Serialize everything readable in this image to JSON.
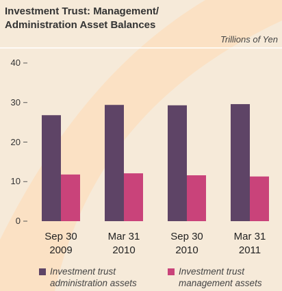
{
  "chart_data": {
    "type": "bar",
    "title": "Investment Trust: Management/\nAdministration Asset Balances",
    "unit_label": "Trillions of Yen",
    "categories": [
      "Sep 30\n2009",
      "Mar 31\n2010",
      "Sep 30\n2010",
      "Mar 31\n2011"
    ],
    "series": [
      {
        "name": "Investment trust\nadministration assets",
        "color": "#5e4466",
        "values": [
          26.8,
          29.4,
          29.3,
          29.6
        ]
      },
      {
        "name": "Investment trust\nmanagement assets",
        "color": "#c9437a",
        "values": [
          11.8,
          12.1,
          11.6,
          11.3
        ]
      }
    ],
    "ylim": [
      0,
      40
    ],
    "yticks": [
      0,
      10,
      20,
      30,
      40
    ]
  }
}
